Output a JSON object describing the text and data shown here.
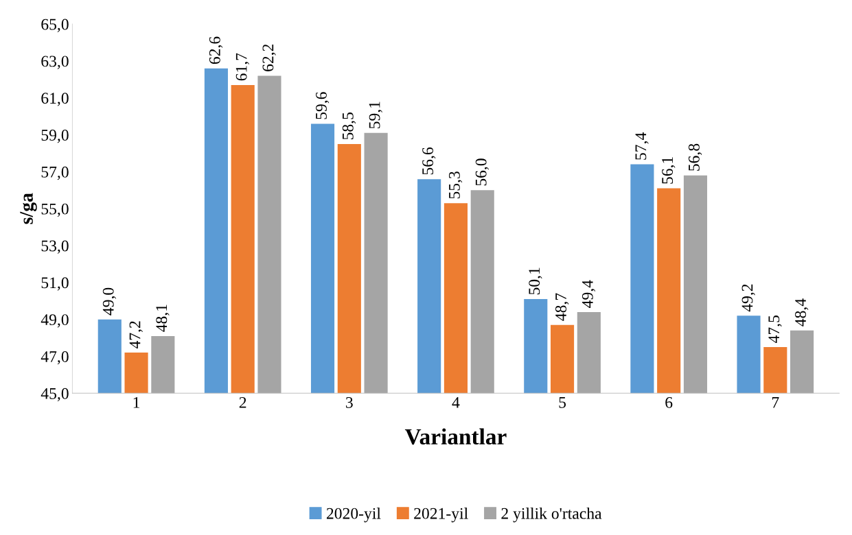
{
  "chart_data": {
    "type": "bar",
    "xlabel": "Variantlar",
    "ylabel": "s/ga",
    "categories": [
      "1",
      "2",
      "3",
      "4",
      "5",
      "6",
      "7"
    ],
    "series": [
      {
        "name": "2020-yil",
        "color": "#5b9bd5",
        "values": [
          49.0,
          62.6,
          59.6,
          56.6,
          50.1,
          57.4,
          49.2
        ],
        "value_labels": [
          "49,0",
          "62,6",
          "59,6",
          "56,6",
          "50,1",
          "57,4",
          "49,2"
        ]
      },
      {
        "name": "2021-yil",
        "color": "#ed7d31",
        "values": [
          47.2,
          61.7,
          58.5,
          55.3,
          48.7,
          56.1,
          47.5
        ],
        "value_labels": [
          "47,2",
          "61,7",
          "58,5",
          "55,3",
          "48,7",
          "56,1",
          "47,5"
        ]
      },
      {
        "name": "2 yillik o'rtacha",
        "color": "#a5a5a5",
        "values": [
          48.1,
          62.2,
          59.1,
          56.0,
          49.4,
          56.8,
          48.4
        ],
        "value_labels": [
          "48,1",
          "62,2",
          "59,1",
          "56,0",
          "49,4",
          "56,8",
          "48,4"
        ]
      }
    ],
    "ylim": [
      45,
      65
    ],
    "yticks": [
      {
        "value": 45,
        "label": "45,0"
      },
      {
        "value": 47,
        "label": "47,0"
      },
      {
        "value": 49,
        "label": "49,0"
      },
      {
        "value": 51,
        "label": "51,0"
      },
      {
        "value": 53,
        "label": "53,0"
      },
      {
        "value": 55,
        "label": "55,0"
      },
      {
        "value": 57,
        "label": "57,0"
      },
      {
        "value": 59,
        "label": "59,0"
      },
      {
        "value": 61,
        "label": "61,0"
      },
      {
        "value": 63,
        "label": "63,0"
      },
      {
        "value": 65,
        "label": "65,0"
      }
    ],
    "grid": false,
    "legend": "bottom"
  }
}
